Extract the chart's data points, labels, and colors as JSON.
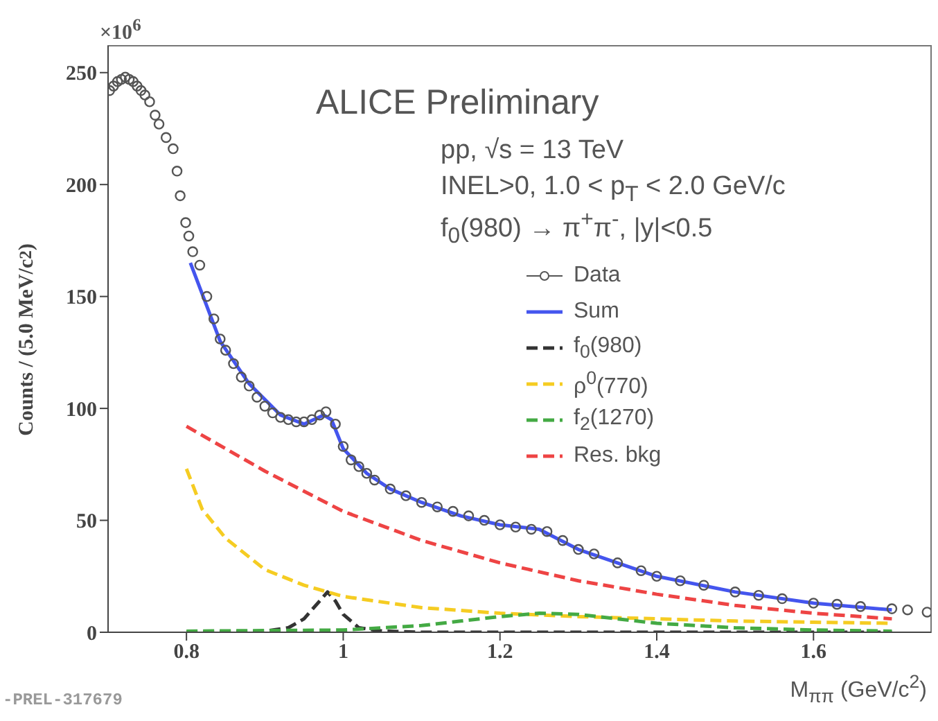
{
  "chart_data": {
    "type": "line",
    "title": "ALICE Preliminary",
    "xlabel": "M$_{ππ}$ (GeV/c$^{2}$)",
    "ylabel": "Counts / (5.0 MeV/c$^{2}$)",
    "annotations": [
      "×10$^{6}$",
      "pp, √s = 13 TeV",
      "INEL>0, 1.0 < p$_{T}$ < 2.0 GeV/c",
      "f$_{0}$(980) → π$^{+}$π$^{-}$, |y|<0.5",
      "-PREL-317679"
    ],
    "xlim": [
      0.7,
      1.75
    ],
    "xticks": [
      0.8,
      1,
      1.2,
      1.4,
      1.6
    ],
    "ylim": [
      0,
      262
    ],
    "yticks": [
      0,
      50,
      100,
      150,
      200,
      250
    ],
    "legend": "right",
    "series": [
      {
        "name": "Data",
        "type": "scatter",
        "marker": "circle",
        "color": "#555555",
        "x": [
          0.702,
          0.707,
          0.712,
          0.717,
          0.722,
          0.727,
          0.732,
          0.737,
          0.742,
          0.747,
          0.753,
          0.76,
          0.765,
          0.774,
          0.783,
          0.788,
          0.792,
          0.799,
          0.803,
          0.808,
          0.817,
          0.826,
          0.835,
          0.843,
          0.85,
          0.86,
          0.87,
          0.88,
          0.89,
          0.9,
          0.91,
          0.92,
          0.93,
          0.94,
          0.95,
          0.96,
          0.97,
          0.978,
          0.99,
          1.0,
          1.01,
          1.02,
          1.03,
          1.04,
          1.06,
          1.08,
          1.1,
          1.12,
          1.14,
          1.16,
          1.18,
          1.2,
          1.22,
          1.24,
          1.26,
          1.28,
          1.3,
          1.32,
          1.35,
          1.38,
          1.4,
          1.43,
          1.46,
          1.5,
          1.53,
          1.56,
          1.6,
          1.63,
          1.66,
          1.7,
          1.72,
          1.745
        ],
        "values": [
          242,
          244,
          246,
          247,
          248,
          247,
          246,
          244,
          242,
          240,
          237,
          231,
          227,
          221,
          216,
          206,
          195,
          183,
          177,
          170,
          164,
          150,
          140,
          131,
          126,
          120,
          114,
          110,
          105,
          101,
          98,
          96,
          95,
          94,
          94,
          95,
          97,
          98.5,
          93,
          83,
          77,
          74,
          71,
          68,
          64,
          61,
          58,
          56,
          54,
          52,
          50,
          48,
          47,
          46,
          45,
          41,
          37,
          35,
          31,
          27.5,
          25,
          23,
          21,
          18,
          16.5,
          15,
          13,
          12.5,
          11.5,
          10.5,
          10,
          9
        ]
      },
      {
        "name": "Sum",
        "color": "#4455ee",
        "line_style": "solid",
        "x": [
          0.805,
          0.843,
          0.88,
          0.92,
          0.95,
          0.975,
          0.985,
          1.0,
          1.03,
          1.06,
          1.1,
          1.15,
          1.2,
          1.25,
          1.3,
          1.4,
          1.5,
          1.6,
          1.7
        ],
        "values": [
          165,
          130,
          111,
          97,
          93,
          97,
          95,
          82,
          71,
          64,
          58,
          52,
          48,
          46,
          37,
          25,
          18,
          13,
          10
        ]
      },
      {
        "name": "f$_{0}$(980)",
        "color": "#333333",
        "line_style": "dashed",
        "x": [
          0.8,
          0.9,
          0.93,
          0.95,
          0.97,
          0.98,
          0.99,
          1.0,
          1.02,
          1.05,
          1.1,
          1.7
        ],
        "values": [
          0,
          0.5,
          2,
          6,
          14,
          18,
          14,
          8,
          2,
          0.5,
          0,
          0
        ]
      },
      {
        "name": "ρ$^{0}$(770)",
        "color": "#f5cc22",
        "line_style": "dashed",
        "x": [
          0.8,
          0.82,
          0.85,
          0.9,
          0.95,
          1.0,
          1.1,
          1.2,
          1.3,
          1.4,
          1.5,
          1.6,
          1.7
        ],
        "values": [
          73,
          55,
          42,
          28,
          21,
          16,
          11,
          8.5,
          7,
          6,
          5,
          4.5,
          4
        ]
      },
      {
        "name": "f$_{2}$(1270)",
        "color": "#44aa44",
        "line_style": "dashed",
        "x": [
          0.8,
          1.0,
          1.1,
          1.15,
          1.2,
          1.25,
          1.3,
          1.35,
          1.4,
          1.5,
          1.6,
          1.7
        ],
        "values": [
          0.5,
          1,
          3,
          5,
          7,
          8.5,
          8,
          6,
          4,
          2,
          1,
          0.5
        ]
      },
      {
        "name": "Res. bkg",
        "color": "#ee4444",
        "line_style": "dashed",
        "x": [
          0.8,
          0.9,
          1.0,
          1.1,
          1.2,
          1.3,
          1.4,
          1.5,
          1.6,
          1.7
        ],
        "values": [
          92,
          72,
          54,
          41,
          31,
          23,
          17,
          12,
          8.5,
          6
        ]
      }
    ]
  }
}
